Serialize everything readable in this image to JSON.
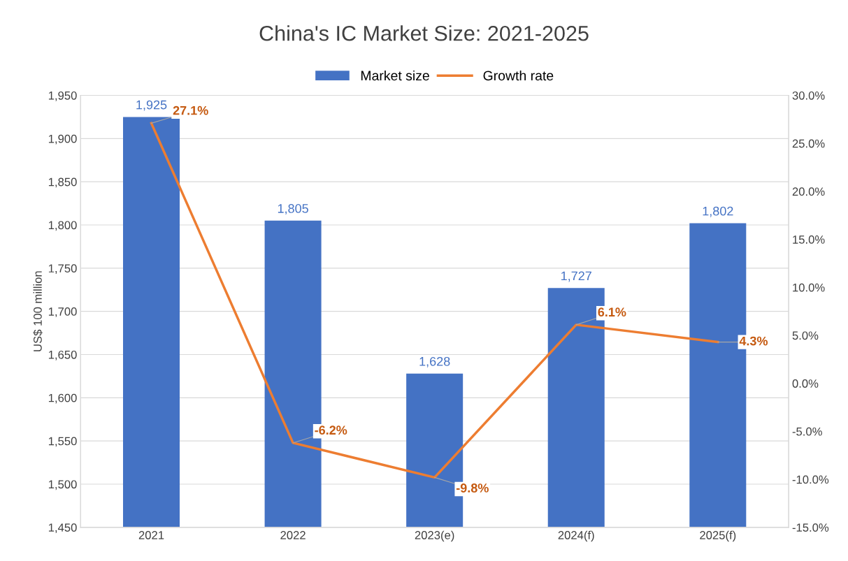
{
  "chart_data": {
    "type": "bar",
    "title": "China's IC Market Size: 2021-2025",
    "ylabel": "US$ 100 million",
    "categories": [
      "2021",
      "2022",
      "2023(e)",
      "2024(f)",
      "2025(f)"
    ],
    "series": [
      {
        "name": "Market size",
        "color": "#4472c4",
        "values": [
          1925,
          1805,
          1628,
          1727,
          1802
        ],
        "value_labels": [
          "1,925",
          "1,805",
          "1,628",
          "1,727",
          "1,802"
        ]
      },
      {
        "name": "Growth rate",
        "type": "line",
        "axis": "y2",
        "color": "#ed7d31",
        "values": [
          27.1,
          -6.2,
          -9.8,
          6.1,
          4.3
        ],
        "value_labels": [
          "27.1%",
          "-6.2%",
          "-9.8%",
          "6.1%",
          "4.3%"
        ]
      }
    ],
    "ylim": [
      1450,
      1950
    ],
    "yticks": [
      {
        "value": 1450,
        "label": "1,450"
      },
      {
        "value": 1500,
        "label": "1,500"
      },
      {
        "value": 1550,
        "label": "1,550"
      },
      {
        "value": 1600,
        "label": "1,600"
      },
      {
        "value": 1650,
        "label": "1,650"
      },
      {
        "value": 1700,
        "label": "1,700"
      },
      {
        "value": 1750,
        "label": "1,750"
      },
      {
        "value": 1800,
        "label": "1,800"
      },
      {
        "value": 1850,
        "label": "1,850"
      },
      {
        "value": 1900,
        "label": "1,900"
      },
      {
        "value": 1950,
        "label": "1,950"
      }
    ],
    "y2lim": [
      -15,
      30
    ],
    "y2ticks": [
      {
        "value": -15,
        "label": "-15.0%"
      },
      {
        "value": -10,
        "label": "-10.0%"
      },
      {
        "value": -5,
        "label": "-5.0%"
      },
      {
        "value": 0,
        "label": "0.0%"
      },
      {
        "value": 5,
        "label": "5.0%"
      },
      {
        "value": 10,
        "label": "10.0%"
      },
      {
        "value": 15,
        "label": "15.0%"
      },
      {
        "value": 20,
        "label": "20.0%"
      },
      {
        "value": 25,
        "label": "25.0%"
      },
      {
        "value": 30,
        "label": "30.0%"
      }
    ],
    "grid": "y",
    "legend": "top",
    "marker": "none",
    "line_style": "solid"
  }
}
